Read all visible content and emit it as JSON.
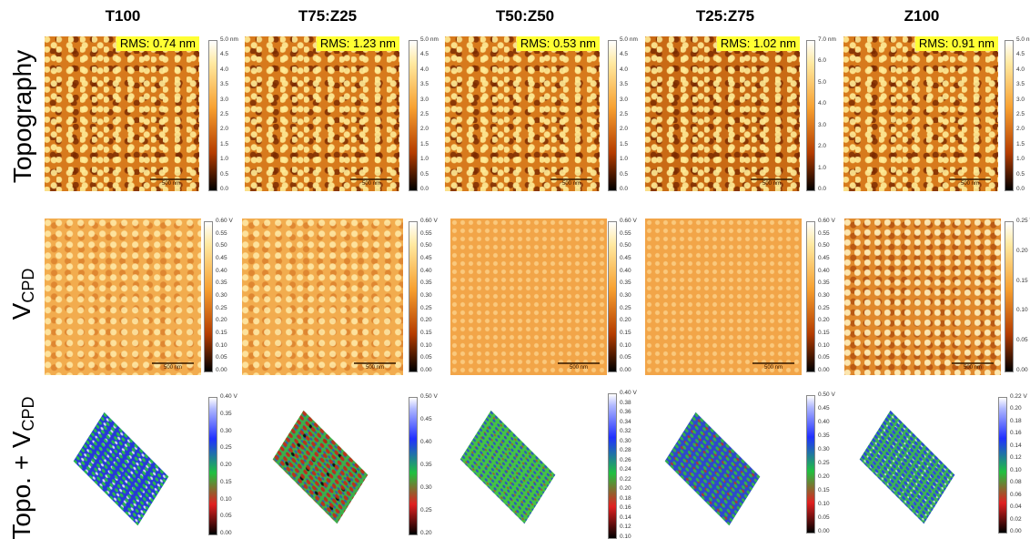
{
  "columns": [
    "T100",
    "T75:Z25",
    "T50:Z50",
    "T25:Z75",
    "Z100"
  ],
  "rows": {
    "topography": "Topography",
    "vcpd_main": "V",
    "vcpd_sub": "CPD",
    "topo_prefix": "Topo. + V",
    "topo_sub": "CPD"
  },
  "rms": [
    "RMS:  0.74 nm",
    "RMS:  1.23 nm",
    "RMS:  0.53 nm",
    "RMS:  1.02 nm",
    "RMS:  0.91 nm"
  ],
  "scalebar_label": "500 nm",
  "topo_colorbars": [
    [
      "5.0 nm",
      "4.5",
      "4.0",
      "3.5",
      "3.0",
      "2.5",
      "2.0",
      "1.5",
      "1.0",
      "0.5",
      "0.0"
    ],
    [
      "5.0 nm",
      "4.5",
      "4.0",
      "3.5",
      "3.0",
      "2.5",
      "2.0",
      "1.5",
      "1.0",
      "0.5",
      "0.0"
    ],
    [
      "5.0 nm",
      "4.5",
      "4.0",
      "3.5",
      "3.0",
      "2.5",
      "2.0",
      "1.5",
      "1.0",
      "0.5",
      "0.0"
    ],
    [
      "7.0 nm",
      "6.0",
      "5.0",
      "4.0",
      "3.0",
      "2.0",
      "1.0",
      "0.0"
    ],
    [
      "5.0 nm",
      "4.5",
      "4.0",
      "3.5",
      "3.0",
      "2.5",
      "2.0",
      "1.5",
      "1.0",
      "0.5",
      "0.0"
    ]
  ],
  "vcpd_colorbars": [
    [
      "0.60 V",
      "0.55",
      "0.50",
      "0.45",
      "0.40",
      "0.35",
      "0.30",
      "0.25",
      "0.20",
      "0.15",
      "0.10",
      "0.05",
      "0.00"
    ],
    [
      "0.60 V",
      "0.55",
      "0.50",
      "0.45",
      "0.40",
      "0.35",
      "0.30",
      "0.25",
      "0.20",
      "0.15",
      "0.10",
      "0.05",
      "0.00"
    ],
    [
      "0.60 V",
      "0.55",
      "0.50",
      "0.45",
      "0.40",
      "0.35",
      "0.30",
      "0.25",
      "0.20",
      "0.15",
      "0.10",
      "0.05",
      "0.00"
    ],
    [
      "0.60 V",
      "0.55",
      "0.50",
      "0.45",
      "0.40",
      "0.35",
      "0.30",
      "0.25",
      "0.20",
      "0.15",
      "0.10",
      "0.05",
      "0.00"
    ],
    [
      "0.25 V",
      "0.20",
      "0.15",
      "0.10",
      "0.05",
      "0.00"
    ]
  ],
  "surface_colorbars": [
    [
      "0.40 V",
      "0.35",
      "0.30",
      "0.25",
      "0.20",
      "0.15",
      "0.10",
      "0.05",
      "0.00"
    ],
    [
      "0.50 V",
      "0.45",
      "0.40",
      "0.35",
      "0.30",
      "0.25",
      "0.20"
    ],
    [
      "0.40 V",
      "0.38",
      "0.36",
      "0.34",
      "0.32",
      "0.30",
      "0.28",
      "0.26",
      "0.24",
      "0.22",
      "0.20",
      "0.18",
      "0.16",
      "0.14",
      "0.12",
      "0.10"
    ],
    [
      "0.50 V",
      "0.45",
      "0.40",
      "0.35",
      "0.30",
      "0.25",
      "0.20",
      "0.15",
      "0.10",
      "0.05",
      "0.00"
    ],
    [
      "0.22 V",
      "0.20",
      "0.18",
      "0.16",
      "0.14",
      "0.12",
      "0.10",
      "0.08",
      "0.06",
      "0.04",
      "0.02",
      "0.00"
    ]
  ],
  "colors": {
    "rms_highlight": "#ffff33",
    "hot_map": "#d77a1c",
    "surface_blue": "#2838d8",
    "surface_green": "#44c444"
  }
}
